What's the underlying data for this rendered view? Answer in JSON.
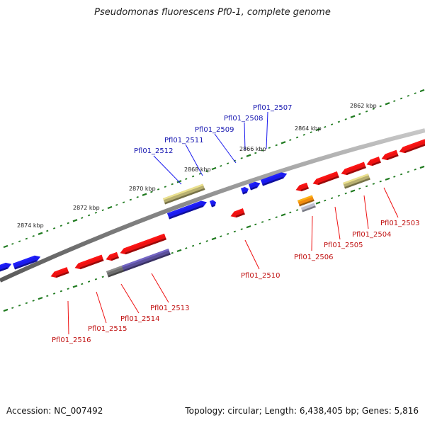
{
  "title": "Pseudomonas fluorescens Pf0-1, complete genome",
  "footer": {
    "accession": "Accession: NC_007492",
    "stats": "Topology: circular; Length: 6,438,405 bp; Genes: 5,816"
  },
  "colors": {
    "forward": "#1a1aee",
    "reverse": "#ee1111",
    "backbone": "#8a8a8a",
    "ticks": "#1f7a1f",
    "olive": "#b8b070",
    "purple": "#5a4f9a",
    "gray_gene": "#6e6e6e",
    "orange": "#f08a10",
    "forward_label": "#1515b0",
    "reverse_label": "#c01010"
  },
  "kbp_marks": [
    {
      "label": "2862 kbp"
    },
    {
      "label": "2864 kbp"
    },
    {
      "label": "2866 kbp"
    },
    {
      "label": "2868 kbp"
    },
    {
      "label": "2870 kbp"
    },
    {
      "label": "2872 kbp"
    },
    {
      "label": "2874 kbp"
    }
  ],
  "forward_labels": [
    {
      "label": "Pfl01_2507"
    },
    {
      "label": "Pfl01_2508"
    },
    {
      "label": "Pfl01_2509"
    },
    {
      "label": "Pfl01_2511"
    },
    {
      "label": "Pfl01_2512"
    }
  ],
  "reverse_labels": [
    {
      "label": "Pfl01_2503"
    },
    {
      "label": "Pfl01_2504"
    },
    {
      "label": "Pfl01_2505"
    },
    {
      "label": "Pfl01_2506"
    },
    {
      "label": "Pfl01_2510"
    },
    {
      "label": "Pfl01_2513"
    },
    {
      "label": "Pfl01_2514"
    },
    {
      "label": "Pfl01_2515"
    },
    {
      "label": "Pfl01_2516"
    }
  ]
}
